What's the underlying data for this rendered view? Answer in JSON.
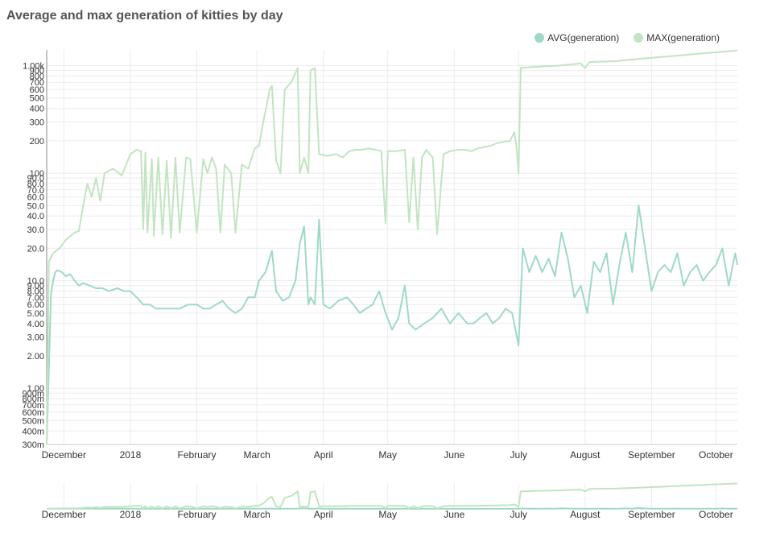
{
  "chart_data": {
    "type": "line",
    "title": "Average and max generation of kitties by day",
    "y_scale": "log",
    "ylim": [
      0.3,
      1400
    ],
    "x_range": [
      "2017-11-23",
      "2018-10-11"
    ],
    "legend_position": "top-right",
    "grid": true,
    "x_ticks": [
      {
        "label": "December",
        "date": "2017-12-01"
      },
      {
        "label": "2018",
        "date": "2018-01-01"
      },
      {
        "label": "February",
        "date": "2018-02-01"
      },
      {
        "label": "March",
        "date": "2018-03-01"
      },
      {
        "label": "April",
        "date": "2018-04-01"
      },
      {
        "label": "May",
        "date": "2018-05-01"
      },
      {
        "label": "June",
        "date": "2018-06-01"
      },
      {
        "label": "July",
        "date": "2018-07-01"
      },
      {
        "label": "August",
        "date": "2018-08-01"
      },
      {
        "label": "September",
        "date": "2018-09-01"
      },
      {
        "label": "October",
        "date": "2018-10-01"
      }
    ],
    "y_ticks": [
      {
        "label": "300m",
        "value": 0.3
      },
      {
        "label": "400m",
        "value": 0.4
      },
      {
        "label": "500m",
        "value": 0.5
      },
      {
        "label": "600m",
        "value": 0.6
      },
      {
        "label": "700m",
        "value": 0.7
      },
      {
        "label": "800m",
        "value": 0.8
      },
      {
        "label": "900m",
        "value": 0.9
      },
      {
        "label": "1.00",
        "value": 1
      },
      {
        "label": "2.00",
        "value": 2
      },
      {
        "label": "3.00",
        "value": 3
      },
      {
        "label": "4.00",
        "value": 4
      },
      {
        "label": "5.00",
        "value": 5
      },
      {
        "label": "6.00",
        "value": 6
      },
      {
        "label": "7.00",
        "value": 7
      },
      {
        "label": "8.00",
        "value": 8
      },
      {
        "label": "9.00",
        "value": 9
      },
      {
        "label": "10.0",
        "value": 10
      },
      {
        "label": "20.0",
        "value": 20
      },
      {
        "label": "30.0",
        "value": 30
      },
      {
        "label": "40.0",
        "value": 40
      },
      {
        "label": "50.0",
        "value": 50
      },
      {
        "label": "60.0",
        "value": 60
      },
      {
        "label": "70.0",
        "value": 70
      },
      {
        "label": "80.0",
        "value": 80
      },
      {
        "label": "90.0",
        "value": 90
      },
      {
        "label": "100",
        "value": 100
      },
      {
        "label": "200",
        "value": 200
      },
      {
        "label": "300",
        "value": 300
      },
      {
        "label": "400",
        "value": 400
      },
      {
        "label": "500",
        "value": 500
      },
      {
        "label": "600",
        "value": 600
      },
      {
        "label": "700",
        "value": 700
      },
      {
        "label": "800",
        "value": 800
      },
      {
        "label": "900",
        "value": 900
      },
      {
        "label": "1.00k",
        "value": 1000
      }
    ],
    "series": [
      {
        "name": "AVG(generation)",
        "color": "#9fd9c6",
        "points": [
          [
            "2017-11-23",
            0.3
          ],
          [
            "2017-11-24",
            1.5
          ],
          [
            "2017-11-25",
            7.5
          ],
          [
            "2017-11-26",
            10
          ],
          [
            "2017-11-27",
            12
          ],
          [
            "2017-11-28",
            12.5
          ],
          [
            "2017-11-30",
            12
          ],
          [
            "2017-12-02",
            11
          ],
          [
            "2017-12-04",
            11.5
          ],
          [
            "2017-12-06",
            10
          ],
          [
            "2017-12-08",
            9
          ],
          [
            "2017-12-10",
            9.5
          ],
          [
            "2017-12-13",
            9
          ],
          [
            "2017-12-16",
            8.5
          ],
          [
            "2017-12-19",
            8.5
          ],
          [
            "2017-12-22",
            8
          ],
          [
            "2017-12-26",
            8.5
          ],
          [
            "2017-12-29",
            8
          ],
          [
            "2018-01-01",
            8
          ],
          [
            "2018-01-04",
            7
          ],
          [
            "2018-01-07",
            6
          ],
          [
            "2018-01-10",
            6
          ],
          [
            "2018-01-13",
            5.5
          ],
          [
            "2018-01-16",
            5.5
          ],
          [
            "2018-01-20",
            5.5
          ],
          [
            "2018-01-24",
            5.5
          ],
          [
            "2018-01-28",
            6
          ],
          [
            "2018-02-01",
            6
          ],
          [
            "2018-02-04",
            5.5
          ],
          [
            "2018-02-07",
            5.5
          ],
          [
            "2018-02-10",
            6
          ],
          [
            "2018-02-13",
            6.5
          ],
          [
            "2018-02-16",
            5.5
          ],
          [
            "2018-02-19",
            5
          ],
          [
            "2018-02-22",
            5.5
          ],
          [
            "2018-02-25",
            7
          ],
          [
            "2018-02-28",
            7
          ],
          [
            "2018-03-02",
            10
          ],
          [
            "2018-03-05",
            12
          ],
          [
            "2018-03-08",
            19
          ],
          [
            "2018-03-10",
            8
          ],
          [
            "2018-03-13",
            6.5
          ],
          [
            "2018-03-16",
            7
          ],
          [
            "2018-03-19",
            10
          ],
          [
            "2018-03-21",
            22
          ],
          [
            "2018-03-23",
            32
          ],
          [
            "2018-03-25",
            6
          ],
          [
            "2018-03-26",
            7
          ],
          [
            "2018-03-28",
            6
          ],
          [
            "2018-03-30",
            37
          ],
          [
            "2018-04-01",
            6
          ],
          [
            "2018-04-04",
            5.5
          ],
          [
            "2018-04-08",
            6.5
          ],
          [
            "2018-04-12",
            7
          ],
          [
            "2018-04-15",
            6
          ],
          [
            "2018-04-18",
            5
          ],
          [
            "2018-04-21",
            5.5
          ],
          [
            "2018-04-24",
            6
          ],
          [
            "2018-04-27",
            8
          ],
          [
            "2018-04-30",
            5
          ],
          [
            "2018-05-03",
            3.5
          ],
          [
            "2018-05-06",
            4.5
          ],
          [
            "2018-05-09",
            9
          ],
          [
            "2018-05-11",
            4
          ],
          [
            "2018-05-14",
            3.5
          ],
          [
            "2018-05-18",
            4
          ],
          [
            "2018-05-22",
            4.5
          ],
          [
            "2018-05-26",
            5.5
          ],
          [
            "2018-05-30",
            4
          ],
          [
            "2018-06-03",
            5
          ],
          [
            "2018-06-07",
            4
          ],
          [
            "2018-06-10",
            4
          ],
          [
            "2018-06-13",
            4.5
          ],
          [
            "2018-06-16",
            5
          ],
          [
            "2018-06-19",
            4
          ],
          [
            "2018-06-22",
            4.5
          ],
          [
            "2018-06-25",
            5.5
          ],
          [
            "2018-06-28",
            5
          ],
          [
            "2018-07-01",
            2.5
          ],
          [
            "2018-07-03",
            20
          ],
          [
            "2018-07-06",
            12
          ],
          [
            "2018-07-09",
            17
          ],
          [
            "2018-07-12",
            12
          ],
          [
            "2018-07-15",
            16
          ],
          [
            "2018-07-18",
            11
          ],
          [
            "2018-07-21",
            28
          ],
          [
            "2018-07-24",
            16
          ],
          [
            "2018-07-27",
            7
          ],
          [
            "2018-07-30",
            9
          ],
          [
            "2018-08-02",
            5
          ],
          [
            "2018-08-05",
            15
          ],
          [
            "2018-08-08",
            12
          ],
          [
            "2018-08-11",
            18
          ],
          [
            "2018-08-14",
            6
          ],
          [
            "2018-08-17",
            14
          ],
          [
            "2018-08-20",
            28
          ],
          [
            "2018-08-23",
            12
          ],
          [
            "2018-08-26",
            50
          ],
          [
            "2018-08-29",
            20
          ],
          [
            "2018-09-01",
            8
          ],
          [
            "2018-09-04",
            12
          ],
          [
            "2018-09-07",
            14
          ],
          [
            "2018-09-10",
            12
          ],
          [
            "2018-09-13",
            18
          ],
          [
            "2018-09-16",
            9
          ],
          [
            "2018-09-19",
            12
          ],
          [
            "2018-09-22",
            14
          ],
          [
            "2018-09-25",
            10
          ],
          [
            "2018-09-28",
            12
          ],
          [
            "2018-10-01",
            14
          ],
          [
            "2018-10-04",
            20
          ],
          [
            "2018-10-07",
            9
          ],
          [
            "2018-10-10",
            18
          ],
          [
            "2018-10-11",
            14
          ]
        ]
      },
      {
        "name": "MAX(generation)",
        "color": "#c2e4c2",
        "points": [
          [
            "2017-11-23",
            0.3
          ],
          [
            "2017-11-24",
            15
          ],
          [
            "2017-11-26",
            18
          ],
          [
            "2017-11-29",
            20
          ],
          [
            "2017-12-02",
            24
          ],
          [
            "2017-12-06",
            28
          ],
          [
            "2017-12-08",
            29
          ],
          [
            "2017-12-10",
            50
          ],
          [
            "2017-12-12",
            80
          ],
          [
            "2017-12-14",
            60
          ],
          [
            "2017-12-16",
            90
          ],
          [
            "2017-12-18",
            55
          ],
          [
            "2017-12-20",
            100
          ],
          [
            "2017-12-24",
            110
          ],
          [
            "2017-12-28",
            95
          ],
          [
            "2018-01-01",
            150
          ],
          [
            "2018-01-04",
            165
          ],
          [
            "2018-01-06",
            160
          ],
          [
            "2018-01-07",
            30
          ],
          [
            "2018-01-08",
            155
          ],
          [
            "2018-01-09",
            28
          ],
          [
            "2018-01-11",
            135
          ],
          [
            "2018-01-12",
            26
          ],
          [
            "2018-01-14",
            140
          ],
          [
            "2018-01-16",
            27
          ],
          [
            "2018-01-18",
            130
          ],
          [
            "2018-01-20",
            25
          ],
          [
            "2018-01-22",
            140
          ],
          [
            "2018-01-24",
            28
          ],
          [
            "2018-01-27",
            140
          ],
          [
            "2018-01-29",
            135
          ],
          [
            "2018-02-01",
            28
          ],
          [
            "2018-02-04",
            135
          ],
          [
            "2018-02-06",
            100
          ],
          [
            "2018-02-08",
            140
          ],
          [
            "2018-02-10",
            110
          ],
          [
            "2018-02-12",
            28
          ],
          [
            "2018-02-14",
            120
          ],
          [
            "2018-02-17",
            100
          ],
          [
            "2018-02-19",
            28
          ],
          [
            "2018-02-22",
            120
          ],
          [
            "2018-02-25",
            110
          ],
          [
            "2018-02-28",
            170
          ],
          [
            "2018-03-02",
            180
          ],
          [
            "2018-03-04",
            300
          ],
          [
            "2018-03-07",
            600
          ],
          [
            "2018-03-08",
            650
          ],
          [
            "2018-03-10",
            130
          ],
          [
            "2018-03-12",
            100
          ],
          [
            "2018-03-14",
            600
          ],
          [
            "2018-03-17",
            700
          ],
          [
            "2018-03-20",
            950
          ],
          [
            "2018-03-21",
            100
          ],
          [
            "2018-03-23",
            140
          ],
          [
            "2018-03-25",
            100
          ],
          [
            "2018-03-26",
            900
          ],
          [
            "2018-03-28",
            950
          ],
          [
            "2018-03-30",
            150
          ],
          [
            "2018-04-03",
            145
          ],
          [
            "2018-04-07",
            150
          ],
          [
            "2018-04-10",
            140
          ],
          [
            "2018-04-13",
            160
          ],
          [
            "2018-04-16",
            165
          ],
          [
            "2018-04-19",
            165
          ],
          [
            "2018-04-22",
            170
          ],
          [
            "2018-04-25",
            165
          ],
          [
            "2018-04-28",
            160
          ],
          [
            "2018-04-30",
            34
          ],
          [
            "2018-05-01",
            160
          ],
          [
            "2018-05-05",
            160
          ],
          [
            "2018-05-09",
            165
          ],
          [
            "2018-05-11",
            35
          ],
          [
            "2018-05-13",
            140
          ],
          [
            "2018-05-15",
            30
          ],
          [
            "2018-05-17",
            140
          ],
          [
            "2018-05-19",
            165
          ],
          [
            "2018-05-22",
            140
          ],
          [
            "2018-05-24",
            27
          ],
          [
            "2018-05-27",
            150
          ],
          [
            "2018-05-30",
            160
          ],
          [
            "2018-06-03",
            165
          ],
          [
            "2018-06-06",
            165
          ],
          [
            "2018-06-09",
            160
          ],
          [
            "2018-06-12",
            170
          ],
          [
            "2018-06-15",
            175
          ],
          [
            "2018-06-18",
            180
          ],
          [
            "2018-06-21",
            190
          ],
          [
            "2018-06-24",
            195
          ],
          [
            "2018-06-27",
            200
          ],
          [
            "2018-06-29",
            240
          ],
          [
            "2018-06-30",
            180
          ],
          [
            "2018-07-01",
            100
          ],
          [
            "2018-07-02",
            950
          ],
          [
            "2018-07-10",
            980
          ],
          [
            "2018-07-20",
            1000
          ],
          [
            "2018-07-30",
            1050
          ],
          [
            "2018-08-01",
            950
          ],
          [
            "2018-08-03",
            1080
          ],
          [
            "2018-08-15",
            1100
          ],
          [
            "2018-08-25",
            1150
          ],
          [
            "2018-09-05",
            1200
          ],
          [
            "2018-09-15",
            1250
          ],
          [
            "2018-09-25",
            1300
          ],
          [
            "2018-10-05",
            1350
          ],
          [
            "2018-10-11",
            1380
          ]
        ]
      }
    ]
  }
}
